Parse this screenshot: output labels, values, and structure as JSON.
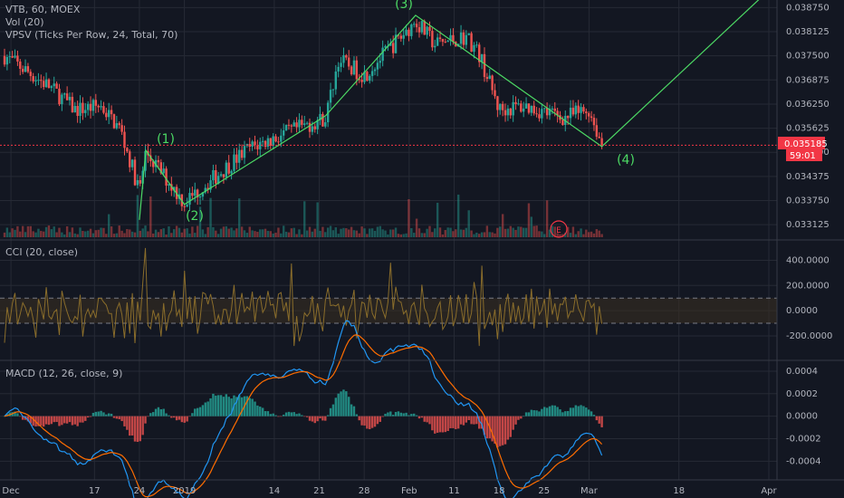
{
  "header": {
    "symbol": "VTB, 60, MOEX",
    "vol": "Vol (20)",
    "vpsv": "VPSV (Ticks Per Row, 24, Total, 70)"
  },
  "colors": {
    "background": "#131722",
    "grid": "#262a35",
    "up_candle": "#26a69a",
    "down_candle": "#ef5350",
    "wave_line": "#4cd964",
    "cci_line": "#8a6d2b",
    "cci_band": "#3a3020",
    "macd_line": "#2196f3",
    "signal_line": "#ff6d00",
    "price_label": "#f23645"
  },
  "chart_data": [
    {
      "type": "candlestick",
      "title": "VTB, 60, MOEX",
      "y_ticks": [
        "0.038750",
        "0.038125",
        "0.037500",
        "0.036875",
        "0.036250",
        "0.035625",
        "0.035000",
        "0.034375",
        "0.033750",
        "0.033125"
      ],
      "ylim": [
        0.0328,
        0.0389
      ],
      "x_ticks": [
        "Dec",
        "17",
        "24",
        "2019",
        "14",
        "21",
        "28",
        "Feb",
        "11",
        "18",
        "25",
        "Mar",
        "18",
        "Apr"
      ],
      "current_price": "0.035185",
      "countdown": "59:01",
      "earnings_marker": "E",
      "wave_labels": [
        "(1)",
        "(2)",
        "(3)",
        "(4)"
      ],
      "wave_points": [
        {
          "date": "2018-12-24",
          "price": 0.03325
        },
        {
          "date": "2018-12-25",
          "price": 0.03505
        },
        {
          "date": "2018-12-31",
          "price": 0.03365
        },
        {
          "date": "2019-01-22",
          "price": 0.03595
        },
        {
          "date": "2019-02-05",
          "price": 0.03855
        },
        {
          "date": "2019-03-06",
          "price": 0.03515
        },
        {
          "date": "2019-04-01",
          "price": 0.0392
        }
      ],
      "price_path": [
        {
          "date": "2018-12-03",
          "price": 0.0375
        },
        {
          "date": "2018-12-10",
          "price": 0.0367
        },
        {
          "date": "2018-12-14",
          "price": 0.0361
        },
        {
          "date": "2018-12-18",
          "price": 0.0362
        },
        {
          "date": "2018-12-21",
          "price": 0.0356
        },
        {
          "date": "2018-12-24",
          "price": 0.034
        },
        {
          "date": "2018-12-25",
          "price": 0.035
        },
        {
          "date": "2018-12-31",
          "price": 0.0337
        },
        {
          "date": "2019-01-10",
          "price": 0.0351
        },
        {
          "date": "2019-01-16",
          "price": 0.0355
        },
        {
          "date": "2019-01-22",
          "price": 0.0359
        },
        {
          "date": "2019-01-24",
          "price": 0.0374
        },
        {
          "date": "2019-01-28",
          "price": 0.037
        },
        {
          "date": "2019-02-05",
          "price": 0.0384
        },
        {
          "date": "2019-02-08",
          "price": 0.0378
        },
        {
          "date": "2019-02-13",
          "price": 0.038
        },
        {
          "date": "2019-02-15",
          "price": 0.0375
        },
        {
          "date": "2019-02-18",
          "price": 0.0361
        },
        {
          "date": "2019-02-22",
          "price": 0.0362
        },
        {
          "date": "2019-02-28",
          "price": 0.0359
        },
        {
          "date": "2019-03-04",
          "price": 0.0361
        },
        {
          "date": "2019-03-06",
          "price": 0.0352
        }
      ]
    },
    {
      "type": "line",
      "title": "CCI (20, close)",
      "y_ticks": [
        "400.0000",
        "200.0000",
        "0.0000",
        "-200.0000"
      ],
      "ylim": [
        -380,
        540
      ],
      "bands": [
        100,
        -100
      ]
    },
    {
      "type": "line",
      "title": "MACD (12, 26, close, 9)",
      "y_ticks": [
        "0.0004",
        "0.0002",
        "0.0000",
        "-0.0002",
        "-0.0004"
      ],
      "ylim": [
        -0.00055,
        0.00048
      ]
    }
  ]
}
